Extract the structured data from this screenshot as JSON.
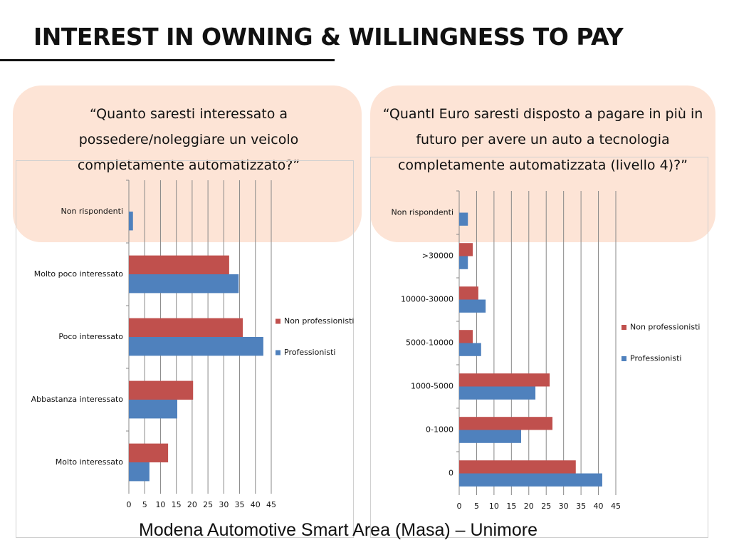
{
  "slide": {
    "title": "INTEREST IN OWNING & WILLINGNESS TO PAY",
    "footer": "Modena Automotive Smart Area (Masa) – Unimore"
  },
  "chart_data": [
    {
      "type": "bar",
      "orientation": "horizontal",
      "title": "“Quanto saresti interessato a possedere/noleggiare un veicolo completamente automatizzato?”",
      "categories": [
        "Non rispondenti",
        "Molto poco interessato",
        "Poco interessato",
        "Abbastanza interessato",
        "Molto interessato"
      ],
      "series": [
        {
          "name": "Non professionisti",
          "color": "#c0504d",
          "values": [
            null,
            31.7,
            36,
            20.3,
            12.4
          ]
        },
        {
          "name": "Professionisti",
          "color": "#4f81bd",
          "values": [
            1.3,
            34.7,
            42.5,
            15.3,
            6.5
          ]
        }
      ],
      "xlim": [
        0,
        45
      ],
      "xticks": [
        0,
        5,
        10,
        15,
        20,
        25,
        30,
        35,
        40,
        45
      ],
      "grid": true,
      "legend": "right"
    },
    {
      "type": "bar",
      "orientation": "horizontal",
      "title": "“QuantI Euro saresti disposto a pagare in più in futuro per avere un auto a tecnologia completamente automatizzata (livello 4)?”",
      "categories": [
        "Non rispondenti",
        ">30000",
        "10000-30000",
        "5000-10000",
        "1000-5000",
        "0-1000",
        "0"
      ],
      "series": [
        {
          "name": "Non professionisti",
          "color": "#c0504d",
          "values": [
            null,
            3.9,
            5.5,
            3.9,
            26,
            26.8,
            33.5
          ]
        },
        {
          "name": "Professionisti",
          "color": "#4f81bd",
          "values": [
            2.5,
            2.5,
            7.6,
            6.3,
            21.9,
            17.8,
            41.1
          ]
        }
      ],
      "xlim": [
        0,
        45
      ],
      "xticks": [
        0,
        5,
        10,
        15,
        20,
        25,
        30,
        35,
        40,
        45
      ],
      "grid": true,
      "legend": "right"
    }
  ]
}
